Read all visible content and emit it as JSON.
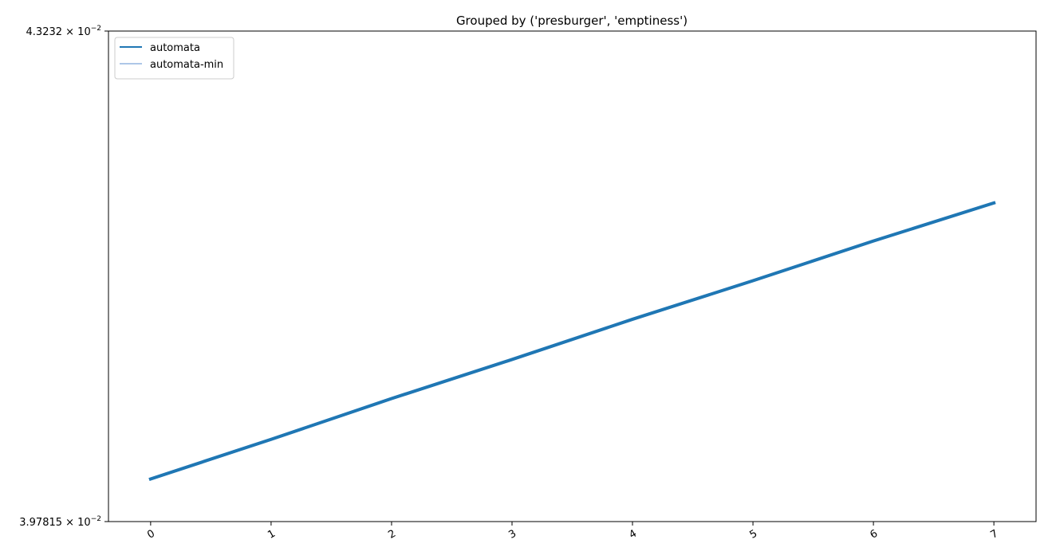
{
  "chart_data": {
    "type": "line",
    "title": "Grouped by ('presburger', 'emptiness')",
    "xlabel": "",
    "ylabel": "",
    "x": [
      0,
      1,
      2,
      3,
      4,
      5,
      6,
      7
    ],
    "xticks": [
      "0",
      "1",
      "2",
      "3",
      "4",
      "5",
      "6",
      "7"
    ],
    "xlim": [
      -0.35,
      7.35
    ],
    "yscale": "log",
    "ylim": [
      0.0397815,
      0.043232
    ],
    "yticks": [
      {
        "value": 0.043232,
        "mantissa": "4.3232",
        "base": "10",
        "exponent": "−2"
      },
      {
        "value": 0.0397815,
        "mantissa": "3.97815",
        "base": "10",
        "exponent": "−2"
      }
    ],
    "series": [
      {
        "name": "automata",
        "color": "#1f77b4",
        "values": [
          0.04007,
          0.04034,
          0.04062,
          0.04089,
          0.04117,
          0.04144,
          0.04172,
          0.04199
        ]
      },
      {
        "name": "automata-min",
        "color": "#aec7e8",
        "values": [
          0.04007,
          0.04034,
          0.04062,
          0.04089,
          0.04117,
          0.04144,
          0.04172,
          0.04199
        ]
      }
    ],
    "legend": "top-left",
    "grid": false
  }
}
